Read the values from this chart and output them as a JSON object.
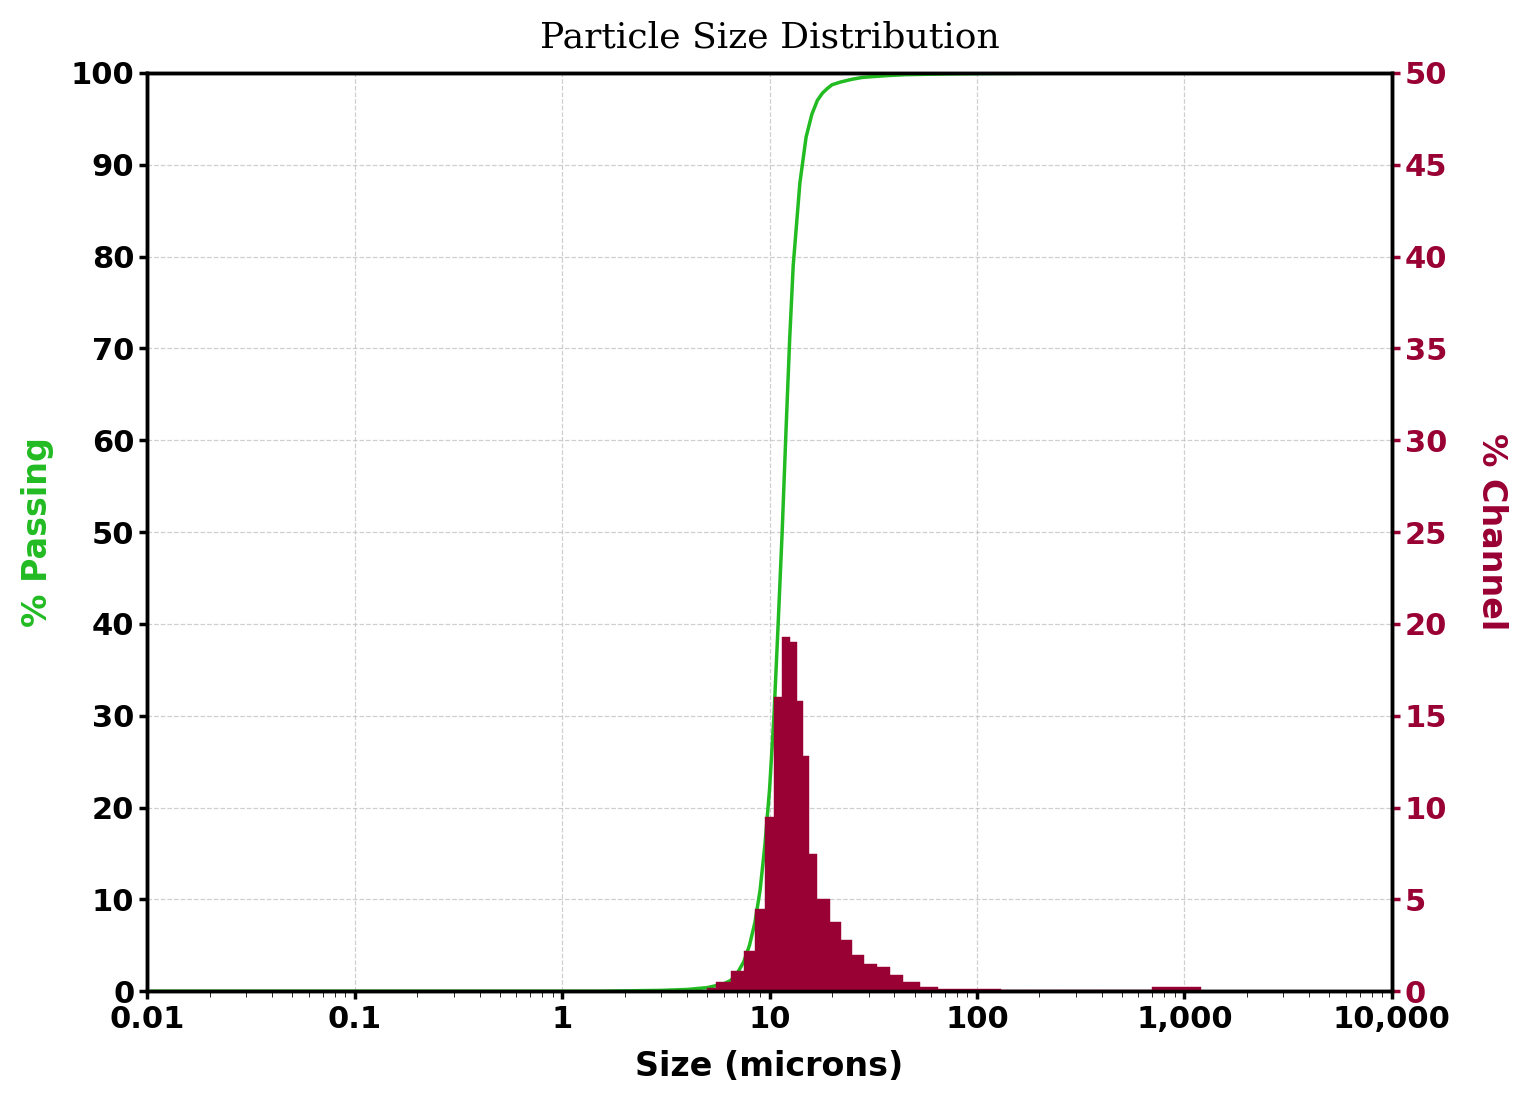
{
  "title": "Particle Size Distribution",
  "xlabel": "Size (microns)",
  "ylabel_left": "% Passing",
  "ylabel_right": "% Channel",
  "left_color": "#22bb22",
  "right_color": "#990033",
  "bar_color": "#990033",
  "line_color": "#22bb22",
  "background_color": "#ffffff",
  "grid_color": "#bbbbbb",
  "xlim_log": [
    0.01,
    10000
  ],
  "ylim_left": [
    0,
    100
  ],
  "ylim_right": [
    0,
    50
  ],
  "cumulative_x": [
    0.01,
    0.05,
    0.1,
    0.3,
    0.5,
    0.8,
    1.0,
    1.5,
    2.0,
    3.0,
    4.0,
    5.0,
    6.0,
    6.5,
    7.0,
    7.5,
    8.0,
    8.5,
    9.0,
    9.5,
    10.0,
    10.5,
    11.0,
    11.5,
    12.0,
    12.5,
    13.0,
    14.0,
    15.0,
    16.0,
    17.0,
    18.0,
    19.0,
    20.0,
    22.0,
    25.0,
    28.0,
    32.0,
    37.0,
    45.0,
    60.0,
    80.0,
    100.0,
    200.0,
    500.0,
    1000.0,
    2000.0,
    5000.0,
    10000.0
  ],
  "cumulative_y": [
    0.0,
    0.0,
    0.0,
    0.0,
    0.0,
    0.0,
    0.0,
    0.0,
    0.05,
    0.1,
    0.2,
    0.4,
    0.8,
    1.2,
    2.0,
    3.2,
    5.0,
    7.5,
    11.0,
    16.0,
    22.0,
    30.0,
    40.0,
    50.0,
    61.0,
    71.0,
    79.0,
    88.0,
    93.0,
    95.5,
    97.0,
    97.8,
    98.3,
    98.7,
    99.0,
    99.3,
    99.5,
    99.6,
    99.7,
    99.8,
    99.85,
    99.9,
    99.92,
    99.95,
    99.97,
    99.98,
    99.99,
    99.99,
    99.99
  ],
  "bar_left_edges": [
    5.0,
    5.5,
    6.5,
    7.5,
    8.5,
    9.5,
    10.5,
    11.5,
    12.5,
    13.5,
    14.5,
    15.5,
    17.0,
    19.5,
    22.0,
    25.0,
    28.5,
    33.0,
    38.0,
    44.0,
    53.0,
    65.0,
    80.0,
    100.0,
    130.0,
    175.0,
    250.0,
    400.0,
    700.0
  ],
  "bar_right_edges": [
    5.5,
    6.5,
    7.5,
    8.5,
    9.5,
    10.5,
    11.5,
    12.5,
    13.5,
    14.5,
    15.5,
    17.0,
    19.5,
    22.0,
    25.0,
    28.5,
    33.0,
    38.0,
    44.0,
    53.0,
    65.0,
    80.0,
    100.0,
    130.0,
    175.0,
    250.0,
    400.0,
    700.0,
    1200.0
  ],
  "bar_heights_pct_channel": [
    0.2,
    0.5,
    1.1,
    2.2,
    4.5,
    9.5,
    16.0,
    19.3,
    19.0,
    15.8,
    12.8,
    7.5,
    5.0,
    3.8,
    2.8,
    2.0,
    1.5,
    1.3,
    0.9,
    0.5,
    0.25,
    0.15,
    0.15,
    0.15,
    0.08,
    0.05,
    0.05,
    0.05,
    0.25
  ]
}
